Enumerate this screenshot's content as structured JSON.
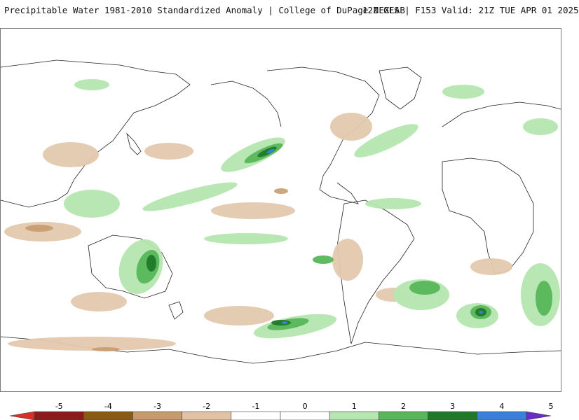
{
  "title": {
    "main": "Precipitable Water 1981-2010 Standardized Anomaly | College of DuPage NEXLAB",
    "run": "12Z GFS | F153 Valid: 21Z TUE APR 01 2025"
  },
  "colorbar": {
    "ticks": [
      "-5",
      "-4",
      "-3",
      "-2",
      "-1",
      "0",
      "1",
      "2",
      "3",
      "4",
      "5"
    ],
    "bins": [
      {
        "from": -5.5,
        "to": -5,
        "color": "#d73027"
      },
      {
        "from": -5,
        "to": -4,
        "color": "#8b1a1a"
      },
      {
        "from": -4,
        "to": -3,
        "color": "#8b5a13"
      },
      {
        "from": -3,
        "to": -2,
        "color": "#c79a6b"
      },
      {
        "from": -2,
        "to": -1,
        "color": "#e3c2a4"
      },
      {
        "from": -1,
        "to": 0,
        "color": "#ffffff"
      },
      {
        "from": 0,
        "to": 1,
        "color": "#ffffff"
      },
      {
        "from": 1,
        "to": 2,
        "color": "#b6e6b0"
      },
      {
        "from": 2,
        "to": 3,
        "color": "#57b75a"
      },
      {
        "from": 3,
        "to": 4,
        "color": "#1e7a2a"
      },
      {
        "from": 4,
        "to": 5,
        "color": "#3a7fd9"
      },
      {
        "from": 5,
        "to": 5.5,
        "color": "#6a2cc6"
      }
    ]
  },
  "colors": {
    "dry_light": "#e3c9ae",
    "dry_mid": "#c99b6e",
    "dry_dark": "#8b5a13",
    "wet_light": "#b6e6b0",
    "wet_mid": "#57b75a",
    "wet_dark": "#1e7a2a",
    "wet_blue": "#3a7fd9",
    "wet_purple": "#6a2cc6",
    "coastline": "#222222"
  }
}
